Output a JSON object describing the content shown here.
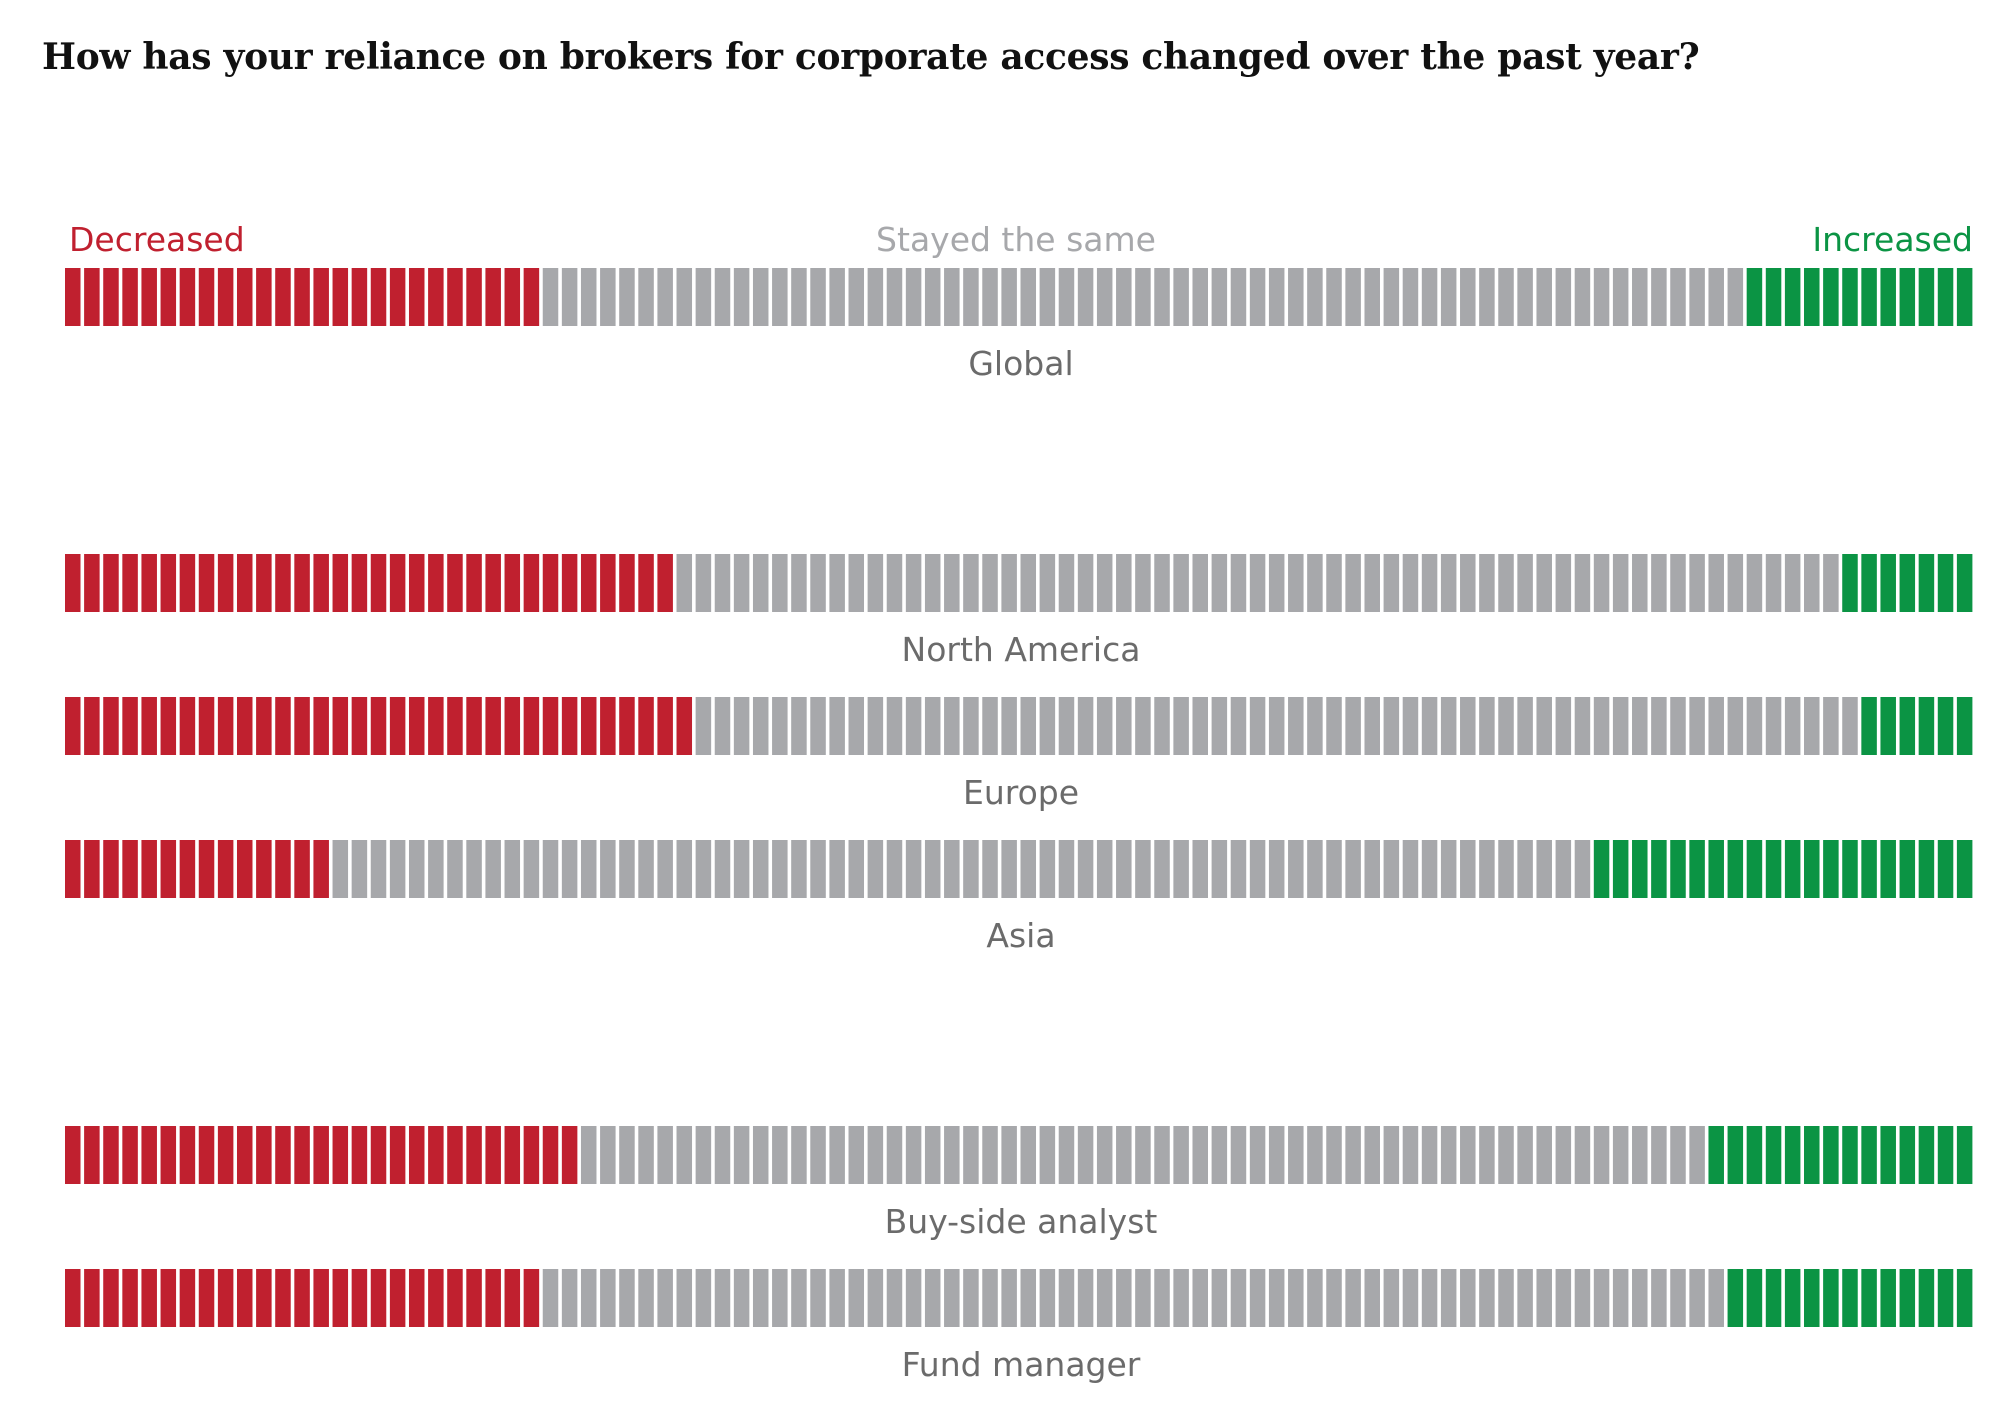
{
  "title": "How has your reliance on brokers for corporate access changed over the past year?",
  "colors": {
    "decreased": "#c0202f",
    "same": "#a7a8ab",
    "increased": "#0b9444",
    "category_label": "#6b6b6b"
  },
  "legend": {
    "decreased": "Decreased",
    "same": "Stayed the same",
    "increased": "Increased"
  },
  "chart_data": {
    "type": "bar",
    "orientation": "horizontal",
    "stacked": true,
    "unit": "%",
    "xlim": [
      0,
      100
    ],
    "legend_position": "top",
    "series": [
      {
        "name": "Decreased",
        "values": [
          25,
          32,
          33,
          14,
          27,
          25
        ]
      },
      {
        "name": "Stayed the same",
        "values": [
          63,
          61,
          61,
          66,
          59,
          62
        ]
      },
      {
        "name": "Increased",
        "values": [
          12,
          7,
          6,
          20,
          14,
          13
        ]
      }
    ],
    "categories": [
      "Global",
      "North America",
      "Europe",
      "Asia",
      "Buy-side analyst",
      "Fund manager"
    ]
  }
}
